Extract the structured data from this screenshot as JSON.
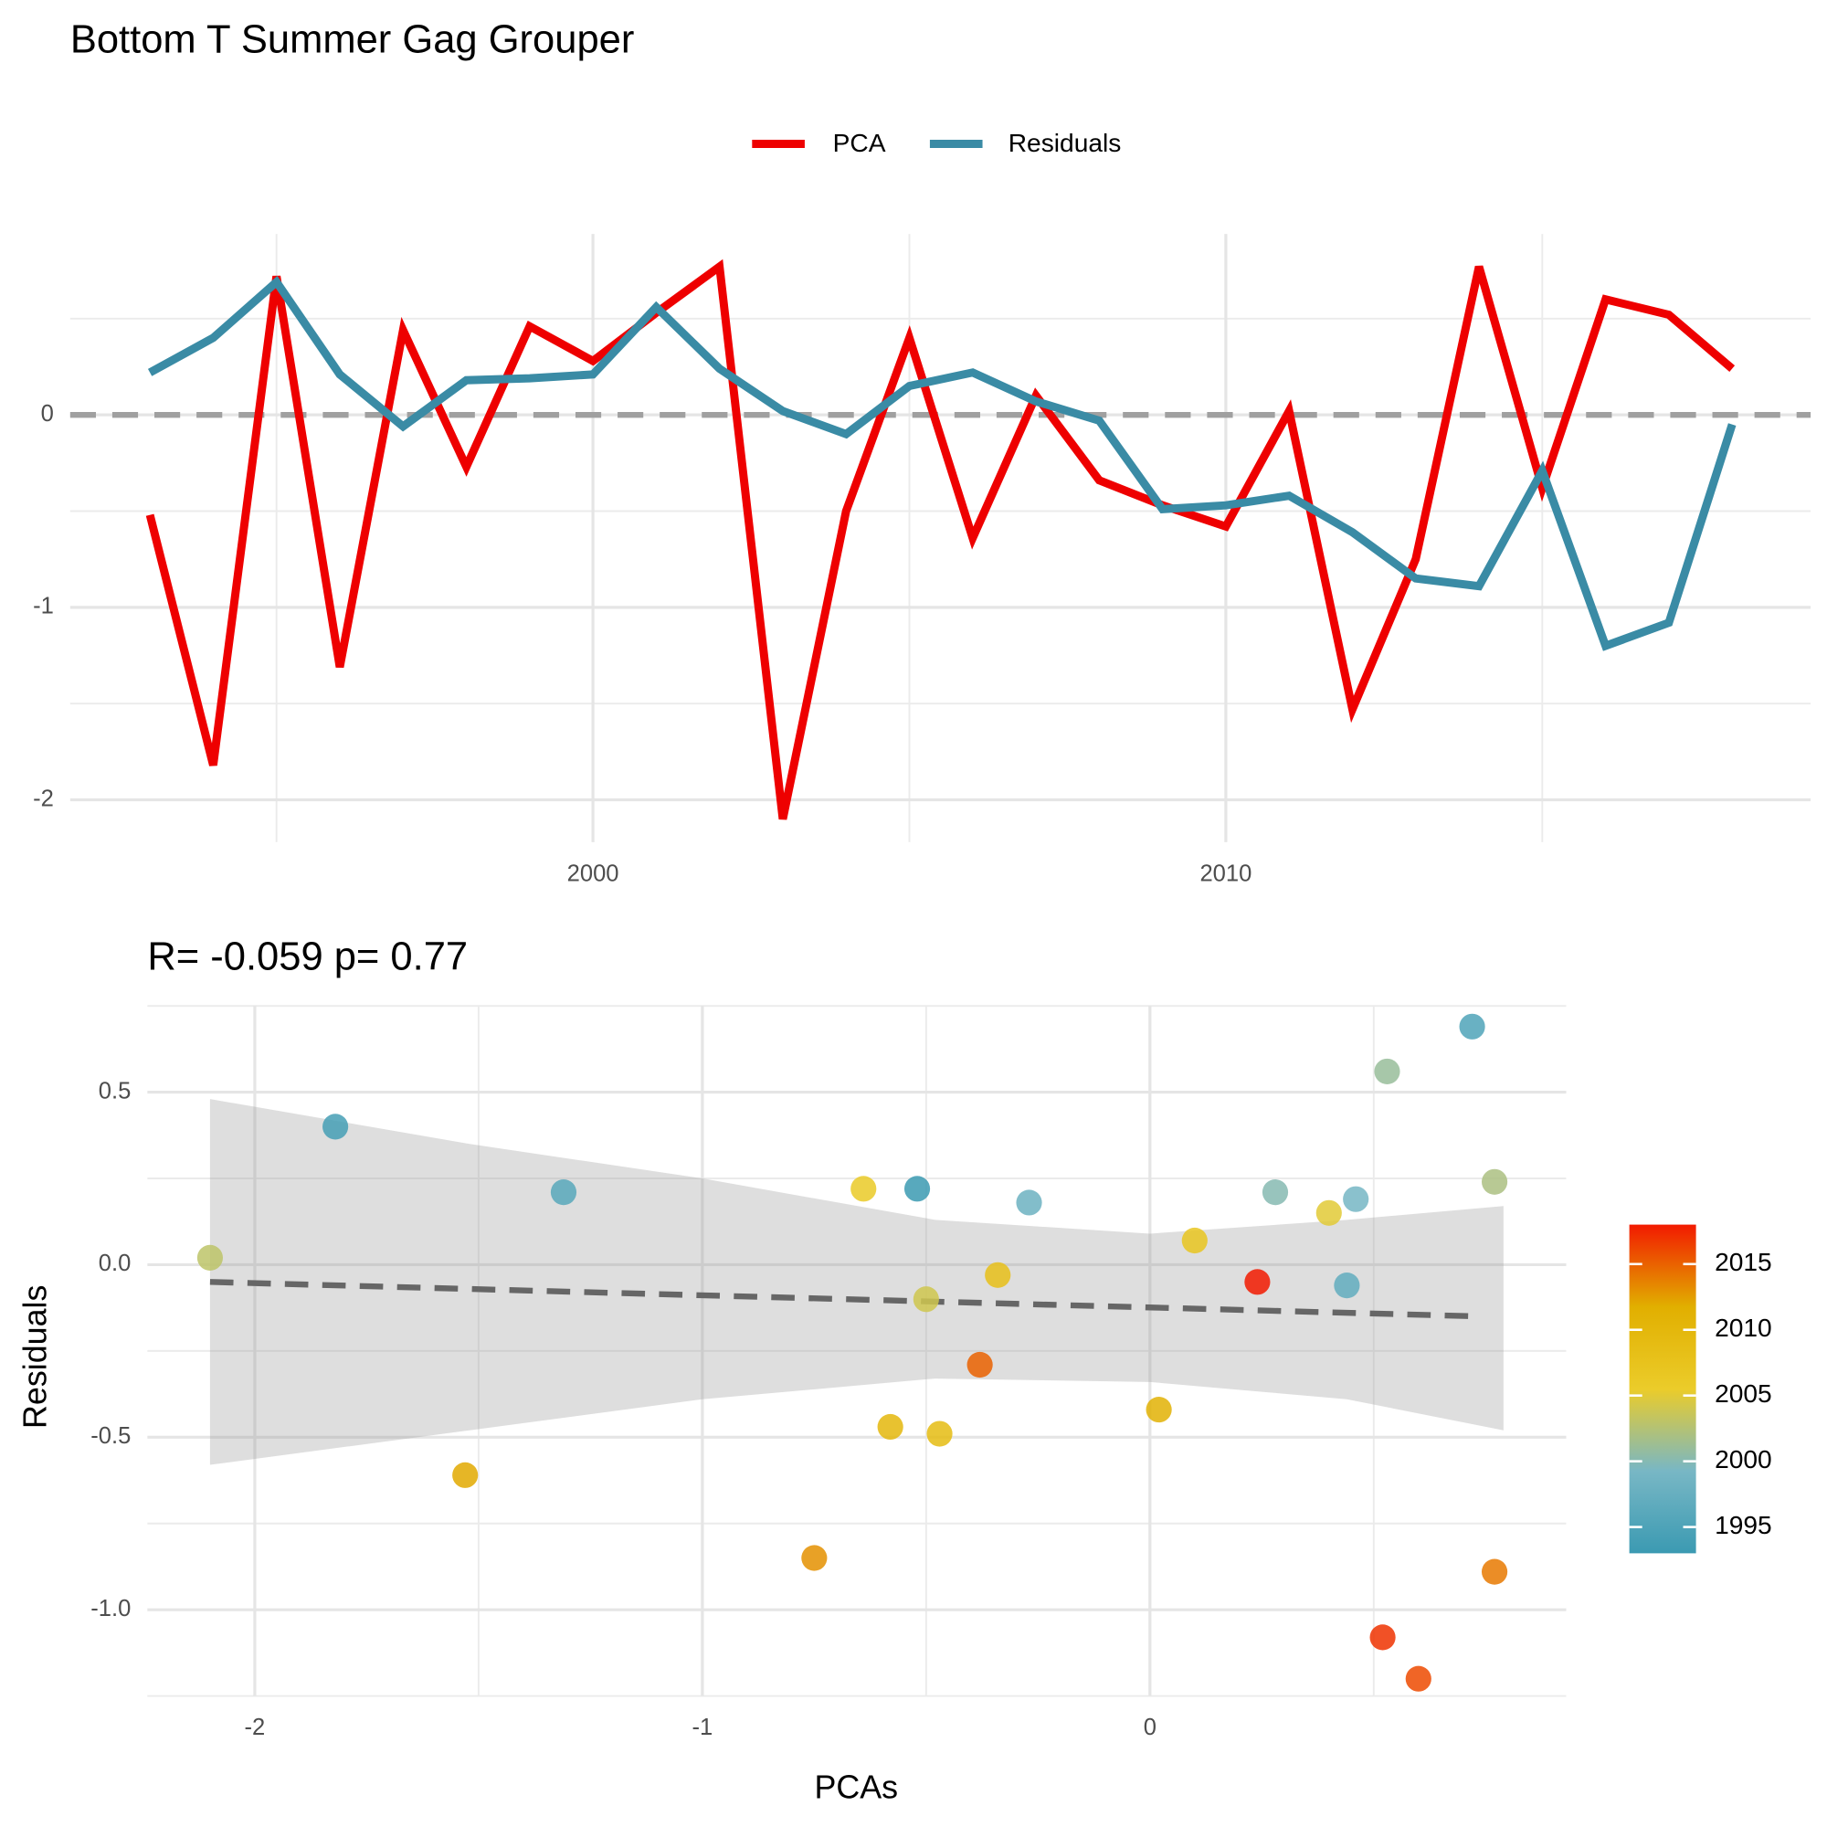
{
  "chart_data": [
    {
      "type": "line",
      "title": "Bottom T Summer Gag Grouper",
      "x": [
        1993,
        1994,
        1995,
        1996,
        1997,
        1998,
        1999,
        2000,
        2001,
        2002,
        2003,
        2004,
        2005,
        2006,
        2007,
        2008,
        2009,
        2010,
        2011,
        2012,
        2013,
        2014,
        2015,
        2016,
        2017,
        2018
      ],
      "series": [
        {
          "name": "PCA",
          "color": "#ee0000",
          "values": [
            -0.52,
            -1.82,
            0.72,
            -1.31,
            0.44,
            -0.27,
            0.46,
            0.28,
            0.53,
            0.77,
            -2.1,
            -0.5,
            0.4,
            -0.64,
            0.1,
            -0.34,
            -0.47,
            -0.58,
            0.02,
            -1.53,
            -0.75,
            0.77,
            -0.38,
            0.6,
            0.52,
            0.24
          ]
        },
        {
          "name": "Residuals",
          "color": "#3a8ba5",
          "values": [
            0.22,
            0.4,
            0.69,
            0.21,
            -0.06,
            0.18,
            0.19,
            0.21,
            0.56,
            0.24,
            0.02,
            -0.1,
            0.15,
            0.22,
            0.07,
            -0.03,
            -0.49,
            -0.47,
            -0.42,
            -0.61,
            -0.85,
            -0.89,
            -0.29,
            -1.2,
            -1.08,
            -0.05
          ]
        }
      ],
      "xlim": [
        1991.74,
        2019.24
      ],
      "xticks": [
        2000,
        2010
      ],
      "x_minor_ticks": [
        1995,
        2005,
        2015
      ],
      "ylim": [
        -2.22,
        0.94
      ],
      "yticks": [
        -2,
        -1,
        0
      ],
      "y_minor_ticks": [
        -1.5,
        -0.5,
        0.5
      ],
      "reference_line": 0,
      "grid": true,
      "legend": "top"
    },
    {
      "type": "scatter",
      "title": "R= -0.059  p= 0.77",
      "x_label": "PCAs",
      "y_label": "Residuals",
      "x": [
        -0.52,
        -1.82,
        0.72,
        -1.31,
        0.44,
        -0.27,
        0.46,
        0.28,
        0.53,
        0.77,
        -2.1,
        -0.5,
        0.4,
        -0.64,
        0.1,
        -0.34,
        -0.47,
        -0.58,
        0.02,
        -1.53,
        -0.75,
        0.77,
        -0.38,
        0.6,
        0.52,
        0.24
      ],
      "y": [
        0.22,
        0.4,
        0.69,
        0.21,
        -0.06,
        0.18,
        0.19,
        0.21,
        0.56,
        0.24,
        0.02,
        -0.1,
        0.15,
        0.22,
        0.07,
        -0.03,
        -0.49,
        -0.47,
        -0.42,
        -0.61,
        -0.85,
        -0.89,
        -0.29,
        -1.2,
        -1.08,
        -0.05
      ],
      "year": [
        1993,
        1994,
        1995,
        1996,
        1997,
        1998,
        1999,
        2000,
        2001,
        2002,
        2003,
        2004,
        2005,
        2006,
        2007,
        2008,
        2009,
        2010,
        2011,
        2012,
        2013,
        2014,
        2015,
        2016,
        2017,
        2018
      ],
      "fit": {
        "x": [
          -2.1,
          0.74
        ],
        "y": [
          -0.05,
          -0.15
        ]
      },
      "band": {
        "x": [
          -2.1,
          -1.52,
          -1.0,
          -0.48,
          0.0,
          0.44,
          0.79
        ],
        "upper": [
          0.48,
          0.35,
          0.25,
          0.13,
          0.09,
          0.13,
          0.17
        ],
        "lower": [
          -0.58,
          -0.48,
          -0.39,
          -0.33,
          -0.34,
          -0.39,
          -0.48
        ]
      },
      "xlim": [
        -2.24,
        0.93
      ],
      "xticks": [
        -2,
        -1,
        0
      ],
      "x_minor_ticks": [
        -1.5,
        -0.5,
        0.5
      ],
      "ylim": [
        -1.25,
        0.75
      ],
      "yticks": [
        0.5,
        {
          "value": 0,
          "label": "0.0"
        },
        -0.5,
        {
          "value": -1,
          "label": "-1.0"
        }
      ],
      "y_minor_ticks": [
        0.75,
        0.25,
        -0.25,
        -0.75,
        -1.25
      ],
      "grid": true,
      "colorbar": {
        "lim": [
          1993,
          2018
        ],
        "ticks": [
          1995,
          2000,
          2005,
          2010,
          2015
        ],
        "colors": [
          "#3B9AB2",
          "#78B7C5",
          "#EBCC2A",
          "#E1AF00",
          "#F21A00"
        ]
      }
    }
  ]
}
